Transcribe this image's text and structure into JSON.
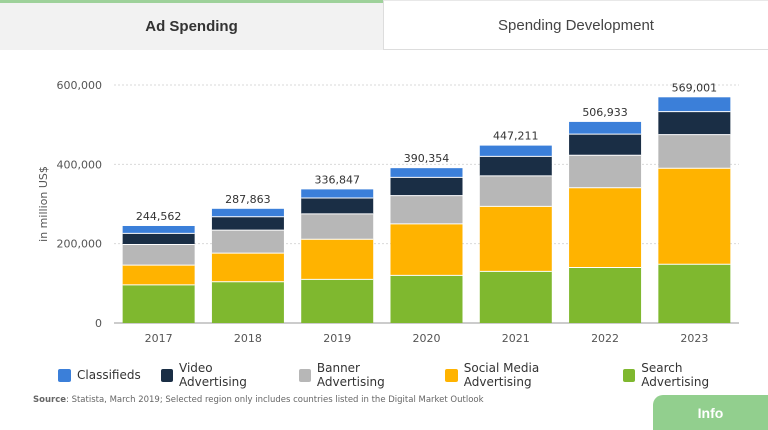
{
  "tabs": {
    "ad_spending": "Ad Spending",
    "spending_development": "Spending Development"
  },
  "colors": {
    "Search Advertising": "#7fb82f",
    "Social Media Advertising": "#ffb300",
    "Banner Advertising": "#b7b7b7",
    "Video Advertising": "#1a2e45",
    "Classifieds": "#3b7fd9",
    "accent": "#92cf8e"
  },
  "chart_data": {
    "type": "bar",
    "stacked": true,
    "categories": [
      "2017",
      "2018",
      "2019",
      "2020",
      "2021",
      "2022",
      "2023"
    ],
    "series": [
      {
        "name": "Search Advertising",
        "values": [
          96000,
          104000,
          110000,
          120000,
          130000,
          140000,
          148000
        ]
      },
      {
        "name": "Social Media Advertising",
        "values": [
          50000,
          72000,
          101000,
          130000,
          164000,
          201000,
          242000
        ]
      },
      {
        "name": "Banner Advertising",
        "values": [
          52000,
          58000,
          64000,
          71000,
          77000,
          82000,
          85000
        ]
      },
      {
        "name": "Video Advertising",
        "values": [
          28000,
          34000,
          40000,
          46000,
          49000,
          53000,
          58000
        ]
      },
      {
        "name": "Classifieds",
        "values": [
          18562,
          19863,
          21847,
          23354,
          27211,
          30933,
          36001
        ]
      }
    ],
    "totals": [
      "244,562",
      "287,863",
      "336,847",
      "390,354",
      "447,211",
      "506,933",
      "569,001"
    ],
    "yticks": [
      0,
      200000,
      400000,
      600000
    ],
    "ytick_labels": [
      "0",
      "200,000",
      "400,000",
      "600,000"
    ],
    "ylim": [
      0,
      600000
    ],
    "ylabel": "in million US$",
    "xlabel": "",
    "grid": true,
    "legend_order": [
      "Classifieds",
      "Video Advertising",
      "Banner Advertising",
      "Social Media Advertising",
      "Search Advertising"
    ],
    "legend_position": "bottom"
  },
  "source": {
    "label": "Source",
    "text": ": Statista, March 2019; Selected region only includes countries listed in the Digital Market Outlook"
  },
  "info_button": "Info"
}
